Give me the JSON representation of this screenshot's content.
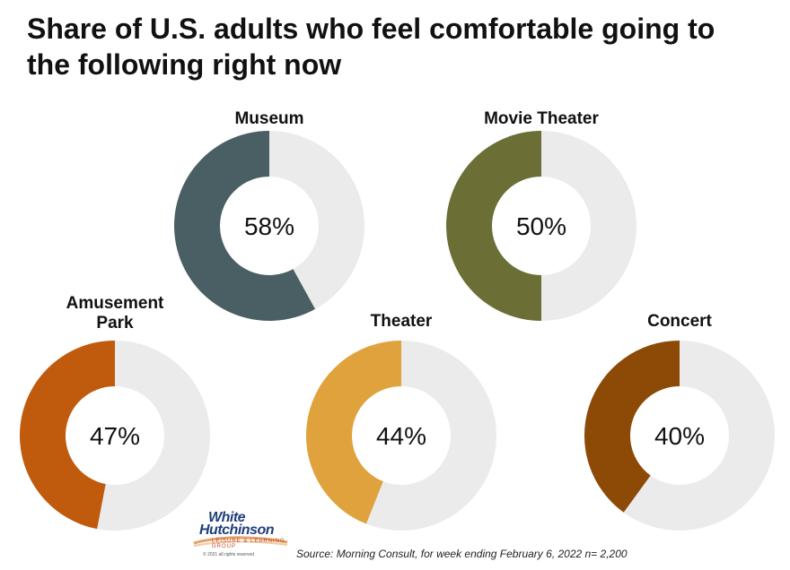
{
  "title": "Share of U.S. adults who feel comfortable going to the following right now",
  "chart_data": {
    "type": "pie",
    "subtype": "donut",
    "title": "Share of U.S. adults who feel comfortable going to the following right now",
    "track_color": "#ebebeb",
    "charts": [
      {
        "label": "Museum",
        "value": 58,
        "value_label": "58%",
        "color": "#4a5f63"
      },
      {
        "label": "Movie Theater",
        "value": 50,
        "value_label": "50%",
        "color": "#6b6e35"
      },
      {
        "label": "Amusement Park",
        "value": 47,
        "value_label": "47%",
        "color": "#c05a0d"
      },
      {
        "label": "Theater",
        "value": 44,
        "value_label": "44%",
        "color": "#e0a23c"
      },
      {
        "label": "Concert",
        "value": 40,
        "value_label": "40%",
        "color": "#8c4a06"
      }
    ]
  },
  "logo": {
    "line1": "White",
    "line2": "Hutchinson",
    "tagline": "LEISURE & LEARNING GROUP",
    "copyright": "© 2021 all rights reserved"
  },
  "source": "Source: Morning Consult, for week ending February 6, 2022 n= 2,200"
}
